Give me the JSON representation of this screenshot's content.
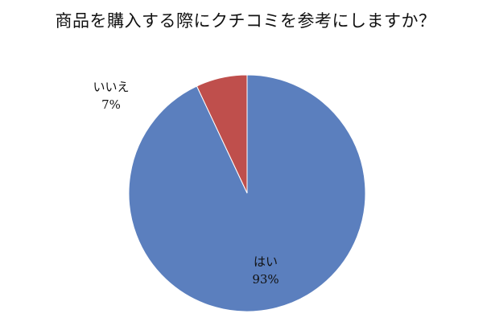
{
  "chart_data": {
    "type": "pie",
    "title": "商品を購入する際にクチコミを参考にしますか？",
    "slices": [
      {
        "label": "はい",
        "value": 93,
        "value_label": "93%",
        "color": "#5b7fbe"
      },
      {
        "label": "いいえ",
        "value": 7,
        "value_label": "7%",
        "color": "#bf4f4c"
      }
    ],
    "start_angle_deg": 0,
    "direction": "clockwise",
    "legend": "none",
    "data_labels": "outside-and-inside"
  }
}
